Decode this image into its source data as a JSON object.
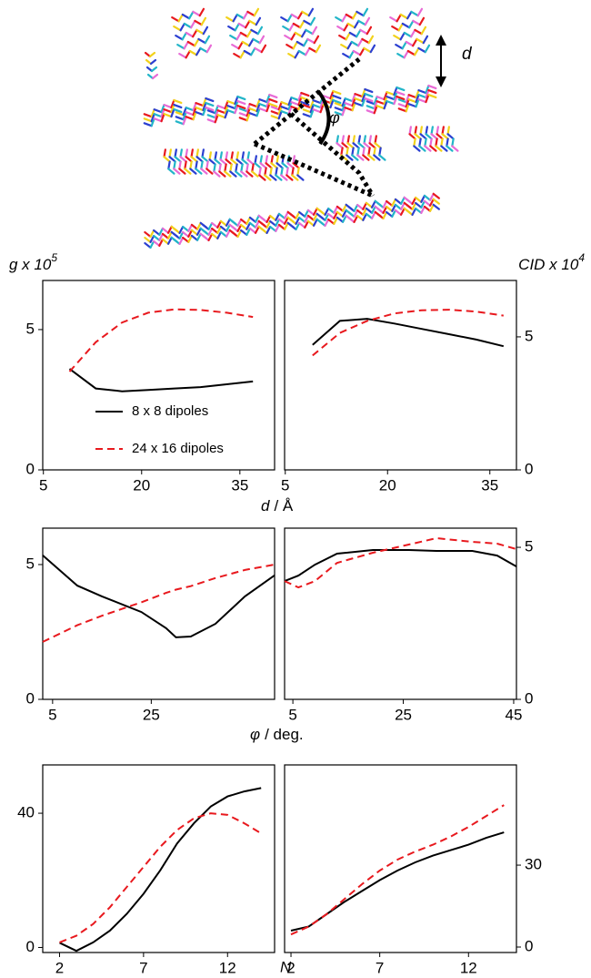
{
  "labels": {
    "y_left": "g x 10",
    "y_left_exp": "5",
    "y_right": "CID x 10",
    "y_right_exp": "4",
    "x_row1_var": "d",
    "x_row1_unit": "/ Å",
    "x_row2_var": "φ",
    "x_row2_unit": "/ deg.",
    "x_row3_var": "N"
  },
  "illustration": {
    "d_label": "d",
    "phi_label": "φ"
  },
  "chart_data": [
    {
      "type": "line",
      "yaxis": "left",
      "legend": true,
      "xlim": [
        4.9,
        40.3
      ],
      "ylim": [
        0,
        6.75
      ],
      "xticks": [
        5,
        20,
        35
      ],
      "yticks": [
        0,
        5
      ],
      "x": [
        9,
        13,
        17,
        21,
        25,
        29,
        33,
        37
      ],
      "series": [
        {
          "name": "8 x 8 dipoles",
          "color": "#000000",
          "dash": false,
          "values": [
            3.6,
            2.9,
            2.8,
            2.85,
            2.9,
            2.95,
            3.05,
            3.15
          ]
        },
        {
          "name": "24 x 16 dipoles",
          "color": "#e8191e",
          "dash": true,
          "values": [
            3.5,
            4.55,
            5.25,
            5.6,
            5.72,
            5.7,
            5.6,
            5.45
          ]
        }
      ]
    },
    {
      "type": "line",
      "yaxis": "right",
      "xlim": [
        4.9,
        38.9
      ],
      "ylim": [
        0,
        7.12
      ],
      "xticks": [
        5,
        20,
        35
      ],
      "yticks": [
        0,
        5
      ],
      "x": [
        9,
        13,
        17,
        21,
        25,
        29,
        33,
        37
      ],
      "series": [
        {
          "color": "#000000",
          "dash": false,
          "values": [
            4.7,
            5.6,
            5.68,
            5.5,
            5.3,
            5.1,
            4.9,
            4.65
          ]
        },
        {
          "color": "#e8191e",
          "dash": true,
          "values": [
            4.3,
            5.15,
            5.6,
            5.88,
            6.0,
            6.02,
            5.95,
            5.8
          ]
        }
      ]
    },
    {
      "type": "line",
      "yaxis": "left",
      "xlim": [
        3,
        50
      ],
      "ylim": [
        0,
        6.35
      ],
      "xticks": [
        5,
        25
      ],
      "yticks": [
        0,
        5
      ],
      "x": [
        3,
        10,
        15,
        23,
        28,
        30,
        33,
        38,
        44,
        50
      ],
      "series": [
        {
          "color": "#000000",
          "dash": false,
          "values": [
            5.34,
            4.22,
            3.82,
            3.24,
            2.64,
            2.3,
            2.33,
            2.8,
            3.82,
            4.6
          ]
        },
        {
          "color": "#e8191e",
          "dash": true,
          "values": [
            2.13,
            2.75,
            3.1,
            3.6,
            3.95,
            4.07,
            4.2,
            4.5,
            4.8,
            5.0
          ]
        }
      ]
    },
    {
      "type": "line",
      "yaxis": "right",
      "xlim": [
        3.5,
        45.5
      ],
      "ylim": [
        0,
        5.63
      ],
      "xticks": [
        5,
        25,
        45
      ],
      "yticks": [
        0,
        5
      ],
      "x": [
        3.5,
        6,
        9,
        13,
        19.5,
        26,
        31,
        37.5,
        42,
        45.5
      ],
      "series": [
        {
          "color": "#000000",
          "dash": false,
          "values": [
            3.89,
            4.07,
            4.43,
            4.79,
            4.91,
            4.91,
            4.88,
            4.88,
            4.73,
            4.37
          ]
        },
        {
          "color": "#e8191e",
          "dash": true,
          "values": [
            3.89,
            3.68,
            3.89,
            4.49,
            4.82,
            5.09,
            5.3,
            5.18,
            5.12,
            4.94
          ]
        }
      ]
    },
    {
      "type": "line",
      "yaxis": "left",
      "xlim": [
        1,
        14.8
      ],
      "ylim": [
        -1.5,
        54.4
      ],
      "xticks": [
        2,
        7,
        12
      ],
      "yticks": [
        0,
        40
      ],
      "x": [
        2,
        3,
        4,
        5,
        6,
        7,
        8,
        9,
        10,
        11,
        12,
        13,
        14
      ],
      "series": [
        {
          "color": "#000000",
          "dash": false,
          "values": [
            1.4,
            -1,
            1.5,
            5,
            10,
            16,
            23,
            31,
            37,
            42,
            45,
            46.5,
            47.5
          ]
        },
        {
          "color": "#e8191e",
          "dash": true,
          "values": [
            1.5,
            3.5,
            7,
            12,
            18,
            24,
            30,
            35,
            38.5,
            40,
            39.5,
            37,
            34
          ]
        }
      ]
    },
    {
      "type": "line",
      "yaxis": "right",
      "xlim": [
        1.64,
        14.7
      ],
      "ylim": [
        -2,
        66.7
      ],
      "xticks": [
        2,
        7,
        12
      ],
      "yticks": [
        0,
        30
      ],
      "x": [
        2,
        3,
        4,
        5,
        6,
        7,
        8,
        9,
        10,
        11,
        12,
        13,
        14
      ],
      "series": [
        {
          "color": "#000000",
          "dash": false,
          "values": [
            6,
            7.5,
            12,
            16.5,
            20.5,
            24.5,
            28,
            31,
            33.5,
            35.5,
            37.5,
            40,
            42
          ]
        },
        {
          "color": "#e8191e",
          "dash": true,
          "values": [
            4.6,
            7.5,
            12,
            17.5,
            23,
            28,
            32,
            35,
            37.5,
            40.5,
            44,
            48,
            52
          ]
        }
      ]
    }
  ]
}
